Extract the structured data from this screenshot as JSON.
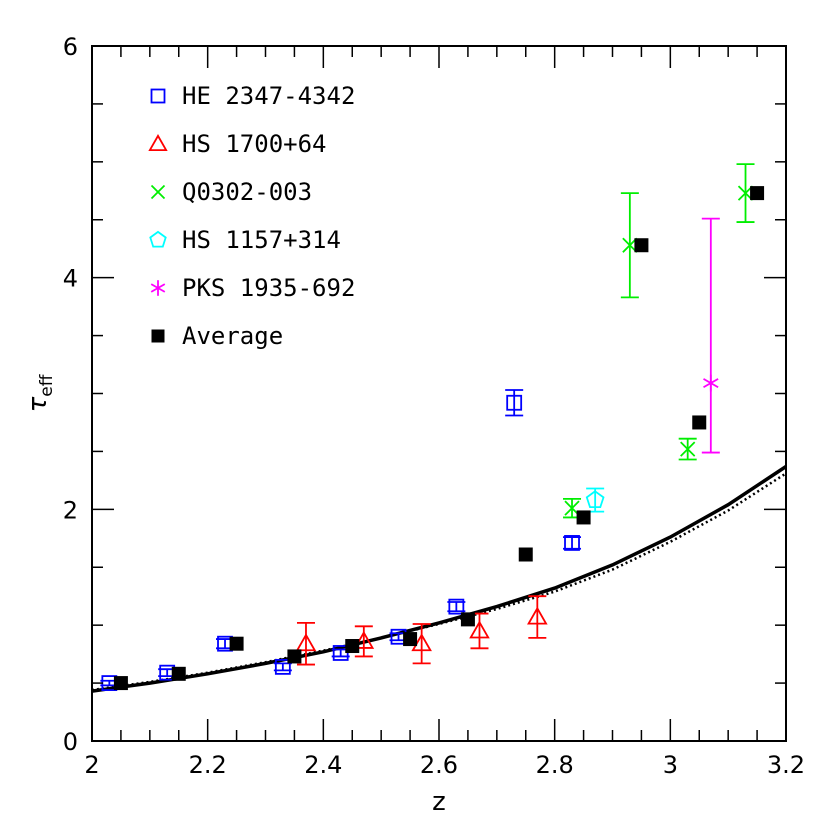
{
  "chart_data": {
    "type": "scatter",
    "xlabel": "z",
    "ylabel": "τ",
    "ylabel_sub": "eff",
    "xlim": [
      2.0,
      3.2
    ],
    "ylim": [
      0,
      6
    ],
    "xticks": [
      {
        "v": 2.0,
        "label": "2"
      },
      {
        "v": 2.2,
        "label": "2.2"
      },
      {
        "v": 2.4,
        "label": "2.4"
      },
      {
        "v": 2.6,
        "label": "2.6"
      },
      {
        "v": 2.8,
        "label": "2.8"
      },
      {
        "v": 3.0,
        "label": "3"
      },
      {
        "v": 3.2,
        "label": "3.2"
      }
    ],
    "yticks": [
      {
        "v": 0,
        "label": "0"
      },
      {
        "v": 2,
        "label": "2"
      },
      {
        "v": 4,
        "label": "4"
      },
      {
        "v": 6,
        "label": "6"
      }
    ],
    "legend_position": "top-left",
    "series": [
      {
        "name": "HE 2347-4342",
        "marker": "square-open",
        "color": "#0000ff",
        "points": [
          {
            "x": 2.03,
            "y": 0.5,
            "err": 0.02
          },
          {
            "x": 2.13,
            "y": 0.59,
            "err": 0.03
          },
          {
            "x": 2.23,
            "y": 0.84,
            "err": 0.04
          },
          {
            "x": 2.33,
            "y": 0.64,
            "err": 0.03
          },
          {
            "x": 2.43,
            "y": 0.76,
            "err": 0.03
          },
          {
            "x": 2.53,
            "y": 0.9,
            "err": 0.03
          },
          {
            "x": 2.63,
            "y": 1.16,
            "err": 0.04
          },
          {
            "x": 2.73,
            "y": 2.92,
            "err": 0.11
          },
          {
            "x": 2.83,
            "y": 1.71,
            "err": 0.05
          }
        ]
      },
      {
        "name": "HS 1700+64",
        "marker": "triangle-open",
        "color": "#ff0000",
        "points": [
          {
            "x": 2.37,
            "y": 0.84,
            "err": 0.18
          },
          {
            "x": 2.47,
            "y": 0.86,
            "err": 0.13
          },
          {
            "x": 2.57,
            "y": 0.84,
            "err": 0.17
          },
          {
            "x": 2.67,
            "y": 0.95,
            "err": 0.15
          },
          {
            "x": 2.77,
            "y": 1.07,
            "err": 0.18
          }
        ]
      },
      {
        "name": "Q0302-003",
        "marker": "cross",
        "color": "#00ee00",
        "points": [
          {
            "x": 2.83,
            "y": 2.01,
            "err": 0.08
          },
          {
            "x": 2.93,
            "y": 4.28,
            "err": 0.45
          },
          {
            "x": 3.03,
            "y": 2.52,
            "err": 0.09
          },
          {
            "x": 3.13,
            "y": 4.73,
            "err": 0.25
          }
        ]
      },
      {
        "name": "HS 1157+314",
        "marker": "pentagon-open",
        "color": "#00ffff",
        "points": [
          {
            "x": 2.87,
            "y": 2.08,
            "err": 0.1
          }
        ]
      },
      {
        "name": "PKS 1935-692",
        "marker": "asterisk",
        "color": "#ff00ff",
        "points": [
          {
            "x": 3.07,
            "y": 3.09,
            "err_low": 0.6,
            "err_high": 1.42
          }
        ]
      },
      {
        "name": "Average",
        "marker": "square-filled",
        "color": "#000000",
        "points": [
          {
            "x": 2.05,
            "y": 0.5
          },
          {
            "x": 2.15,
            "y": 0.58
          },
          {
            "x": 2.25,
            "y": 0.84
          },
          {
            "x": 2.35,
            "y": 0.73
          },
          {
            "x": 2.45,
            "y": 0.82
          },
          {
            "x": 2.55,
            "y": 0.88
          },
          {
            "x": 2.65,
            "y": 1.05
          },
          {
            "x": 2.75,
            "y": 1.61
          },
          {
            "x": 2.85,
            "y": 1.93
          },
          {
            "x": 2.95,
            "y": 4.28
          },
          {
            "x": 3.05,
            "y": 2.75
          },
          {
            "x": 3.15,
            "y": 4.73
          }
        ]
      }
    ],
    "curves": [
      {
        "style": "solid",
        "color": "#000000",
        "x": [
          2.0,
          2.1,
          2.2,
          2.3,
          2.4,
          2.5,
          2.6,
          2.7,
          2.8,
          2.9,
          3.0,
          3.1,
          3.2
        ],
        "y": [
          0.43,
          0.5,
          0.58,
          0.67,
          0.77,
          0.89,
          1.02,
          1.16,
          1.32,
          1.52,
          1.76,
          2.04,
          2.37
        ]
      },
      {
        "style": "dotted",
        "color": "#000000",
        "x": [
          2.0,
          2.1,
          2.2,
          2.3,
          2.4,
          2.5,
          2.6,
          2.7,
          2.8,
          2.9,
          3.0,
          3.1,
          3.2
        ],
        "y": [
          0.44,
          0.51,
          0.59,
          0.68,
          0.78,
          0.89,
          1.01,
          1.14,
          1.29,
          1.48,
          1.72,
          1.99,
          2.31
        ]
      }
    ]
  }
}
